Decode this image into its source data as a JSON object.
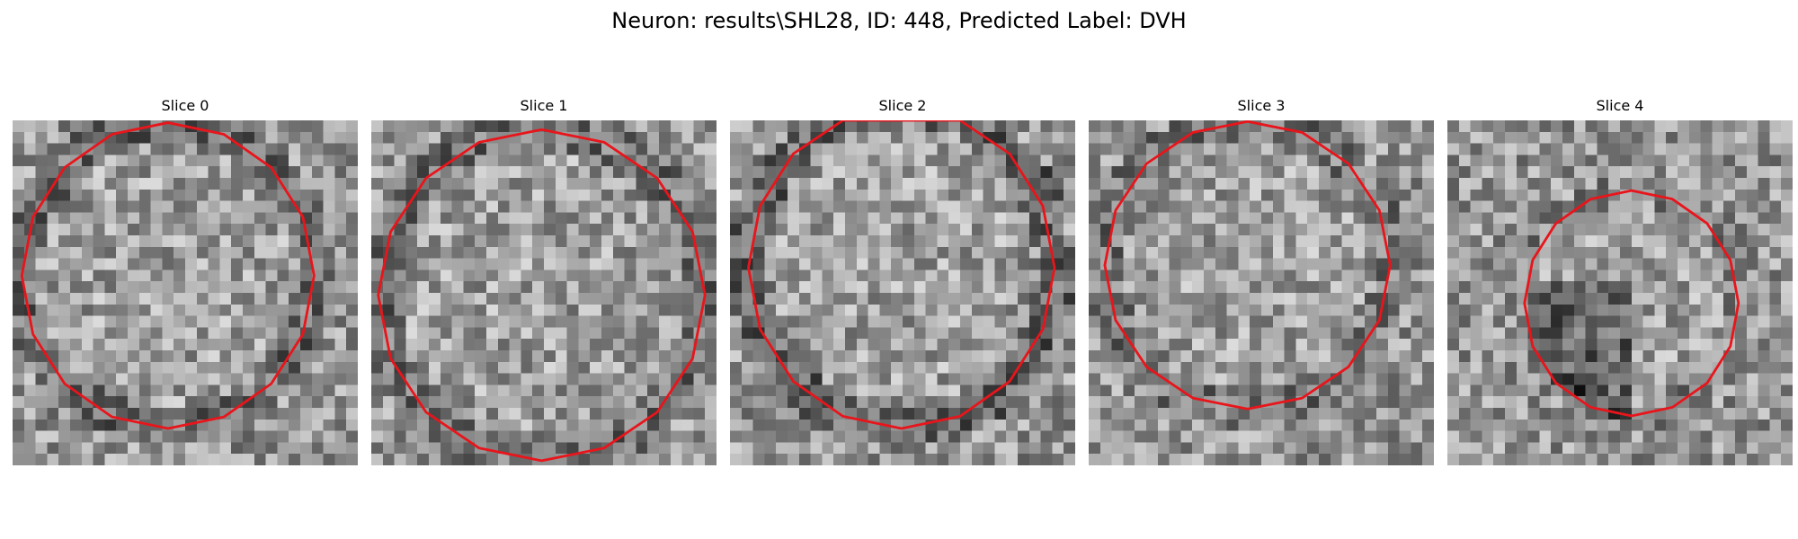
{
  "figure": {
    "title": "Neuron: results\\SHL28, ID: 448, Predicted Label: DVH"
  },
  "slices": [
    {
      "title": "Slice 0"
    },
    {
      "title": "Slice 1"
    },
    {
      "title": "Slice 2"
    },
    {
      "title": "Slice 3"
    },
    {
      "title": "Slice 4"
    }
  ],
  "colors": {
    "contour": "#e8151b",
    "background": "#ffffff"
  }
}
